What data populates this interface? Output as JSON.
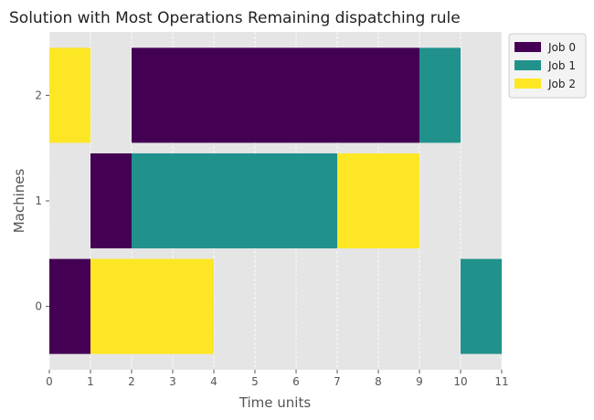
{
  "chart_data": {
    "type": "gantt",
    "title": "Solution with Most Operations Remaining dispatching rule",
    "xlabel": "Time units",
    "ylabel": "Machines",
    "xlim": [
      0,
      11
    ],
    "x_ticks": [
      "0",
      "1",
      "2",
      "3",
      "4",
      "5",
      "6",
      "7",
      "8",
      "9",
      "10",
      "11"
    ],
    "machines": [
      "0",
      "1",
      "2"
    ],
    "grid": true,
    "legend_position": "outside-top-right",
    "series": [
      {
        "name": "Job 0",
        "color": "#440154",
        "tasks": [
          {
            "machine": "0",
            "start": 0,
            "end": 1
          },
          {
            "machine": "1",
            "start": 1,
            "end": 2
          },
          {
            "machine": "2",
            "start": 2,
            "end": 9
          }
        ]
      },
      {
        "name": "Job 1",
        "color": "#21918c",
        "tasks": [
          {
            "machine": "1",
            "start": 2,
            "end": 7
          },
          {
            "machine": "2",
            "start": 9,
            "end": 10
          },
          {
            "machine": "0",
            "start": 10,
            "end": 11
          }
        ]
      },
      {
        "name": "Job 2",
        "color": "#fde725",
        "tasks": [
          {
            "machine": "2",
            "start": 0,
            "end": 1
          },
          {
            "machine": "0",
            "start": 1,
            "end": 4
          },
          {
            "machine": "1",
            "start": 7,
            "end": 9
          }
        ]
      }
    ]
  }
}
